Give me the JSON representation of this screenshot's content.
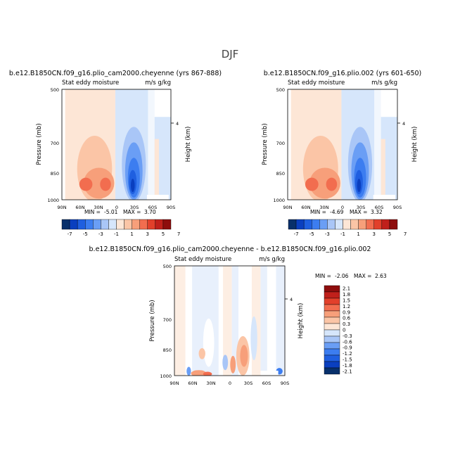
{
  "main_title": "DJF",
  "colors": {
    "levels": [
      "#08306b",
      "#0a3fbf",
      "#1f5fe0",
      "#3c7df0",
      "#6a9ef5",
      "#a9c6f7",
      "#d6e6fb",
      "#fde6d6",
      "#fbc5a6",
      "#f79f7a",
      "#f26d4f",
      "#e2402b",
      "#c0201b",
      "#8e0d0d"
    ]
  },
  "chart_data": [
    {
      "type": "heatmap",
      "title": "b.e12.B1850CN.f09_g16.plio_cam2000.cheyenne (yrs 867-888)",
      "field_label": "Stat eddy moisture",
      "units": "m/s g/kg",
      "ylabel": "Pressure (mb)",
      "ylabel_right": "Height (km)",
      "x_ticks": [
        "90N",
        "60N",
        "30N",
        "0",
        "30S",
        "60S",
        "90S"
      ],
      "y_ticks": [
        "500",
        "700",
        "850",
        "1000"
      ],
      "right_ticks": [
        "4"
      ],
      "min_label": "MIN =",
      "min_value": "-5.01",
      "max_label": "MAX =",
      "max_value": "3.70",
      "colorbar": {
        "labels": [
          "-7",
          "-5",
          "-3",
          "-1",
          "1",
          "3",
          "5",
          "7"
        ]
      }
    },
    {
      "type": "heatmap",
      "title": "b.e12.B1850CN.f09_g16.plio.002 (yrs 601-650)",
      "field_label": "Stat eddy moisture",
      "units": "m/s g/kg",
      "ylabel": "Pressure (mb)",
      "ylabel_right": "Height (km)",
      "x_ticks": [
        "90N",
        "60N",
        "30N",
        "0",
        "30S",
        "60S",
        "90S"
      ],
      "y_ticks": [
        "500",
        "700",
        "850",
        "1000"
      ],
      "right_ticks": [
        "4"
      ],
      "min_label": "MIN =",
      "min_value": "-4.69",
      "max_label": "MAX =",
      "max_value": "3.32",
      "colorbar": {
        "labels": [
          "-7",
          "-5",
          "-3",
          "-1",
          "1",
          "3",
          "5",
          "7"
        ]
      }
    },
    {
      "type": "heatmap",
      "title": "b.e12.B1850CN.f09_g16.plio_cam2000.cheyenne - b.e12.B1850CN.f09_g16.plio.002",
      "field_label": "Stat eddy moisture",
      "units": "m/s g/kg",
      "ylabel": "Pressure (mb)",
      "ylabel_right": "Height (km)",
      "x_ticks": [
        "90N",
        "60N",
        "30N",
        "0",
        "30S",
        "60S",
        "90S"
      ],
      "y_ticks": [
        "500",
        "700",
        "850",
        "1000"
      ],
      "right_ticks": [
        "4"
      ],
      "min_label": "MIN =",
      "min_value": "-2.06",
      "max_label": "MAX =",
      "max_value": "2.63",
      "colorbar": {
        "labels": [
          "2.1",
          "1.8",
          "1.5",
          "1.2",
          "0.9",
          "0.6",
          "0.3",
          "0",
          "-0.3",
          "-0.6",
          "-0.9",
          "-1.2",
          "-1.5",
          "-1.8",
          "-2.1"
        ]
      }
    }
  ]
}
